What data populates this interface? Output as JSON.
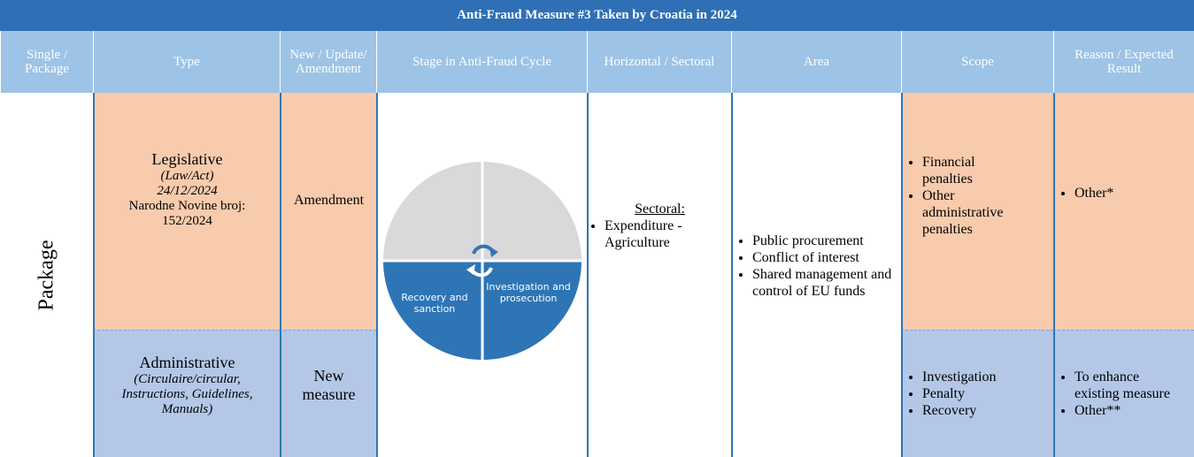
{
  "title": "Anti-Fraud Measure #3 Taken by Croatia in 2024",
  "table": {
    "headers": [
      "Single / Package",
      "Type",
      "New / Update/ Amendment",
      "Stage in Anti-Fraud Cycle",
      "Horizontal / Sectoral",
      "Area",
      "Scope",
      "Reason / Expected Result"
    ],
    "single_package": "Package",
    "rows": [
      {
        "type": "Legislative",
        "type_detail": "(Law/Act)",
        "date": "24/12/2024",
        "reference": "Narodne Novine broj: 152/2024",
        "new_update": "Amendment",
        "scope": [
          "Financial penalties",
          "Other administrative penalties"
        ],
        "reason": [
          "Other*"
        ]
      },
      {
        "type": "Administrative",
        "type_detail": "(Circulaire/circular, Instructions, Guidelines, Manuals)",
        "new_update": "New measure",
        "scope": [
          "Investigation",
          "Penalty",
          "Recovery"
        ],
        "reason": [
          "To enhance existing measure",
          "Other**"
        ]
      }
    ],
    "stage": {
      "segments": [
        "Recovery and sanction",
        "Investigation and prosecution"
      ]
    },
    "horizontal": {
      "label": "Sectoral:",
      "items": [
        "Expenditure - Agriculture"
      ]
    },
    "area": [
      "Public procurement",
      "Conflict of interest",
      "Shared management and control of EU funds"
    ]
  }
}
